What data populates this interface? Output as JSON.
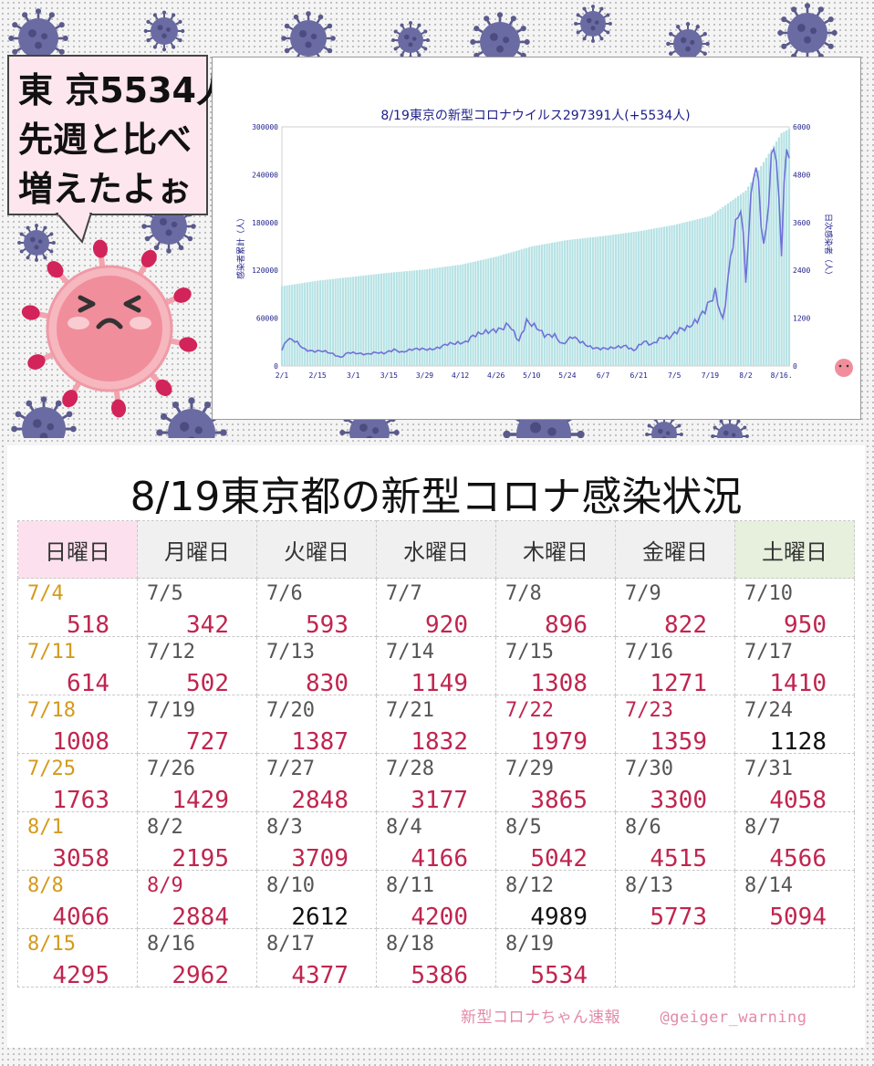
{
  "bubble": {
    "lines": [
      "東 京5534人",
      "先週と比べ",
      "増えたよぉ"
    ]
  },
  "chart_data": {
    "type": "bar",
    "title": "8/19東京の新型コロナウイルス297391人(+5534人)",
    "ylabel": "感染者累計（人）",
    "y2label": "日次感染者（人）",
    "xticks": [
      "2/1",
      "2/15",
      "3/1",
      "3/15",
      "3/29",
      "4/12",
      "4/26",
      "5/10",
      "5/24",
      "6/7",
      "6/21",
      "7/5",
      "7/19",
      "8/2",
      "8/16."
    ],
    "yticks": [
      "0",
      "60000",
      "120000",
      "180000",
      "240000",
      "300000"
    ],
    "y2ticks": [
      "0",
      "1200",
      "2400",
      "3600",
      "4800",
      "6000"
    ],
    "ylim": [
      0,
      300000
    ],
    "y2lim": [
      0,
      6000
    ],
    "x": {
      "start": "2021-02-01",
      "end": "2021-08-19"
    },
    "series": [
      {
        "name": "感染者累計",
        "kind": "bar",
        "anchors": [
          [
            "2/1",
            100000
          ],
          [
            "2/15",
            107000
          ],
          [
            "3/1",
            112000
          ],
          [
            "3/15",
            117000
          ],
          [
            "3/29",
            121000
          ],
          [
            "4/12",
            127000
          ],
          [
            "4/26",
            137000
          ],
          [
            "5/10",
            150000
          ],
          [
            "5/24",
            158000
          ],
          [
            "6/7",
            163000
          ],
          [
            "6/21",
            169000
          ],
          [
            "7/5",
            177000
          ],
          [
            "7/19",
            188000
          ],
          [
            "8/2",
            220000
          ],
          [
            "8/16",
            292000
          ],
          [
            "8/19",
            297391
          ]
        ]
      },
      {
        "name": "日次感染者",
        "kind": "line",
        "anchors": [
          [
            "2/1",
            393
          ],
          [
            "2/3",
            676
          ],
          [
            "2/6",
            639
          ],
          [
            "2/10",
            412
          ],
          [
            "2/13",
            369
          ],
          [
            "2/17",
            378
          ],
          [
            "2/20",
            327
          ],
          [
            "2/24",
            213
          ],
          [
            "2/27",
            337
          ],
          [
            "3/3",
            316
          ],
          [
            "3/6",
            293
          ],
          [
            "3/10",
            340
          ],
          [
            "3/13",
            320
          ],
          [
            "3/17",
            409
          ],
          [
            "3/20",
            342
          ],
          [
            "3/24",
            420
          ],
          [
            "3/27",
            430
          ],
          [
            "3/31",
            414
          ],
          [
            "4/3",
            446
          ],
          [
            "4/7",
            555
          ],
          [
            "4/10",
            570
          ],
          [
            "4/14",
            591
          ],
          [
            "4/17",
            759
          ],
          [
            "4/21",
            843
          ],
          [
            "4/24",
            876
          ],
          [
            "4/28",
            925
          ],
          [
            "5/1",
            1050
          ],
          [
            "5/5",
            621
          ],
          [
            "5/8",
            1121
          ],
          [
            "5/12",
            969
          ],
          [
            "5/15",
            772
          ],
          [
            "5/19",
            766
          ],
          [
            "5/22",
            539
          ],
          [
            "5/26",
            743
          ],
          [
            "5/29",
            614
          ],
          [
            "6/2",
            471
          ],
          [
            "6/5",
            436
          ],
          [
            "6/9",
            440
          ],
          [
            "6/12",
            467
          ],
          [
            "6/16",
            501
          ],
          [
            "6/19",
            388
          ],
          [
            "6/23",
            619
          ],
          [
            "6/26",
            534
          ],
          [
            "6/30",
            714
          ],
          [
            "7/3",
            716
          ],
          [
            "7/7",
            920
          ],
          [
            "7/10",
            950
          ],
          [
            "7/14",
            1149
          ],
          [
            "7/17",
            1410
          ],
          [
            "7/21",
            1832
          ],
          [
            "7/24",
            1128
          ],
          [
            "7/28",
            3177
          ],
          [
            "7/31",
            4058
          ],
          [
            "8/2",
            2195
          ],
          [
            "8/5",
            5042
          ],
          [
            "8/7",
            4566
          ],
          [
            "8/9",
            2884
          ],
          [
            "8/11",
            4200
          ],
          [
            "8/13",
            5773
          ],
          [
            "8/14",
            5094
          ],
          [
            "8/16",
            2962
          ],
          [
            "8/17",
            4377
          ],
          [
            "8/18",
            5386
          ],
          [
            "8/19",
            5534
          ]
        ]
      }
    ]
  },
  "table": {
    "title": "8/19東京都の新型コロナ感染状況",
    "days": [
      "日曜日",
      "月曜日",
      "火曜日",
      "水曜日",
      "木曜日",
      "金曜日",
      "土曜日"
    ],
    "weeks": [
      [
        {
          "date": "7/4",
          "count": "518"
        },
        {
          "date": "7/5",
          "count": "342"
        },
        {
          "date": "7/6",
          "count": "593"
        },
        {
          "date": "7/7",
          "count": "920"
        },
        {
          "date": "7/8",
          "count": "896"
        },
        {
          "date": "7/9",
          "count": "822"
        },
        {
          "date": "7/10",
          "count": "950"
        }
      ],
      [
        {
          "date": "7/11",
          "count": "614"
        },
        {
          "date": "7/12",
          "count": "502"
        },
        {
          "date": "7/13",
          "count": "830"
        },
        {
          "date": "7/14",
          "count": "1149"
        },
        {
          "date": "7/15",
          "count": "1308"
        },
        {
          "date": "7/16",
          "count": "1271"
        },
        {
          "date": "7/17",
          "count": "1410"
        }
      ],
      [
        {
          "date": "7/18",
          "count": "1008"
        },
        {
          "date": "7/19",
          "count": "727"
        },
        {
          "date": "7/20",
          "count": "1387"
        },
        {
          "date": "7/21",
          "count": "1832"
        },
        {
          "date": "7/22",
          "count": "1979",
          "holiday": true
        },
        {
          "date": "7/23",
          "count": "1359",
          "holiday": true
        },
        {
          "date": "7/24",
          "count": "1128",
          "black": true
        }
      ],
      [
        {
          "date": "7/25",
          "count": "1763"
        },
        {
          "date": "7/26",
          "count": "1429"
        },
        {
          "date": "7/27",
          "count": "2848"
        },
        {
          "date": "7/28",
          "count": "3177"
        },
        {
          "date": "7/29",
          "count": "3865"
        },
        {
          "date": "7/30",
          "count": "3300"
        },
        {
          "date": "7/31",
          "count": "4058"
        }
      ],
      [
        {
          "date": "8/1",
          "count": "3058"
        },
        {
          "date": "8/2",
          "count": "2195"
        },
        {
          "date": "8/3",
          "count": "3709"
        },
        {
          "date": "8/4",
          "count": "4166"
        },
        {
          "date": "8/5",
          "count": "5042"
        },
        {
          "date": "8/6",
          "count": "4515"
        },
        {
          "date": "8/7",
          "count": "4566"
        }
      ],
      [
        {
          "date": "8/8",
          "count": "4066"
        },
        {
          "date": "8/9",
          "count": "2884",
          "holiday": true
        },
        {
          "date": "8/10",
          "count": "2612",
          "black": true
        },
        {
          "date": "8/11",
          "count": "4200"
        },
        {
          "date": "8/12",
          "count": "4989",
          "black": true
        },
        {
          "date": "8/13",
          "count": "5773"
        },
        {
          "date": "8/14",
          "count": "5094"
        }
      ],
      [
        {
          "date": "8/15",
          "count": "4295"
        },
        {
          "date": "8/16",
          "count": "2962"
        },
        {
          "date": "8/17",
          "count": "4377"
        },
        {
          "date": "8/18",
          "count": "5386"
        },
        {
          "date": "8/19",
          "count": "5534"
        },
        {
          "date": "",
          "count": ""
        },
        {
          "date": "",
          "count": ""
        }
      ]
    ]
  },
  "footer": {
    "source": "新型コロナちゃん速報",
    "handle": "@geiger_warning"
  },
  "colors": {
    "bar": "#b6e2e4",
    "line": "#7070d8",
    "axis_text": "#1d1d8a",
    "count_red": "#c0254f",
    "sunday_date": "#d49a1c",
    "sunday_header": "#fde0ee",
    "saturday_header": "#e6f0dd"
  },
  "icons": [
    "virus-icon",
    "virus-mascot-icon"
  ]
}
